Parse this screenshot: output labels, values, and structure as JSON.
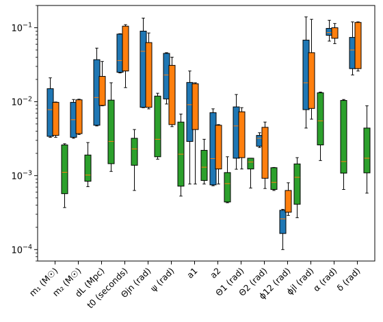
{
  "chart_data": {
    "type": "box",
    "yscale": "log",
    "ylim": [
      7e-05,
      0.2
    ],
    "yticks": [
      {
        "value": 0.0001,
        "base": "10",
        "exp": "−4"
      },
      {
        "value": 0.001,
        "base": "10",
        "exp": "−3"
      },
      {
        "value": 0.01,
        "base": "10",
        "exp": "−2"
      },
      {
        "value": 0.1,
        "base": "10",
        "exp": "−1"
      }
    ],
    "colors": [
      "#1f77b4",
      "#ff7f0e",
      "#2ca02c"
    ],
    "median_color": "#ff7f0e",
    "categories": [
      {
        "label": "m₁ (M☉)",
        "boxes": [
          {
            "whislo": 0.0033,
            "q1": 0.0034,
            "med": 0.0078,
            "q3": 0.015,
            "whishi": 0.021
          },
          {
            "whislo": 0.0033,
            "q1": 0.0035,
            "med": 0.0079,
            "q3": 0.0098,
            "whishi": 0.0099
          },
          {
            "whislo": 0.00037,
            "q1": 0.00057,
            "med": 0.00111,
            "q3": 0.0026,
            "whishi": 0.0027
          }
        ]
      },
      {
        "label": "m₂ (M☉)",
        "boxes": [
          {
            "whislo": 0.0032,
            "q1": 0.0033,
            "med": 0.0057,
            "q3": 0.0098,
            "whishi": 0.0107
          },
          {
            "whislo": 0.0036,
            "q1": 0.0037,
            "med": 0.0067,
            "q3": 0.0106,
            "whishi": 0.0108
          },
          {
            "whislo": 0.00071,
            "q1": 0.00084,
            "med": 0.00102,
            "q3": 0.0019,
            "whishi": 0.0028
          }
        ]
      },
      {
        "label": "dL (Mpc)",
        "boxes": [
          {
            "whislo": 0.0047,
            "q1": 0.0048,
            "med": 0.0114,
            "q3": 0.037,
            "whishi": 0.053
          },
          {
            "whislo": 0.0088,
            "q1": 0.0089,
            "med": 0.0165,
            "q3": 0.022,
            "whishi": 0.035
          },
          {
            "whislo": 0.00114,
            "q1": 0.00145,
            "med": 0.0029,
            "q3": 0.0105,
            "whishi": 0.018
          }
        ]
      },
      {
        "label": "t0 (seconds)",
        "boxes": [
          {
            "whislo": 0.0245,
            "q1": 0.025,
            "med": 0.036,
            "q3": 0.082,
            "whishi": 0.083
          },
          {
            "whislo": 0.0155,
            "q1": 0.026,
            "med": 0.068,
            "q3": 0.105,
            "whishi": 0.11
          },
          {
            "whislo": 0.00063,
            "q1": 0.00138,
            "med": 0.0023,
            "q3": 0.0032,
            "whishi": 0.0042
          }
        ]
      },
      {
        "label": "Θjn (rad)",
        "boxes": [
          {
            "whislo": 0.0083,
            "q1": 0.0084,
            "med": 0.048,
            "q3": 0.09,
            "whishi": 0.135
          },
          {
            "whislo": 0.008,
            "q1": 0.0084,
            "med": 0.031,
            "q3": 0.063,
            "whishi": 0.085
          },
          {
            "whislo": 0.00167,
            "q1": 0.0018,
            "med": 0.0031,
            "q3": 0.0119,
            "whishi": 0.013
          }
        ]
      },
      {
        "label": "ψ (rad)",
        "boxes": [
          {
            "whislo": 0.0093,
            "q1": 0.0109,
            "med": 0.023,
            "q3": 0.045,
            "whishi": 0.046
          },
          {
            "whislo": 0.0046,
            "q1": 0.0049,
            "med": 0.0133,
            "q3": 0.031,
            "whishi": 0.04
          },
          {
            "whislo": 0.00053,
            "q1": 0.00072,
            "med": 0.00195,
            "q3": 0.0053,
            "whishi": 0.0068
          }
        ]
      },
      {
        "label": "a1",
        "boxes": [
          {
            "whislo": 0.00077,
            "q1": 0.0029,
            "med": 0.0091,
            "q3": 0.0182,
            "whishi": 0.026
          },
          {
            "whislo": 0.00077,
            "q1": 0.0042,
            "med": 0.0075,
            "q3": 0.0175,
            "whishi": 0.018
          },
          {
            "whislo": 0.00077,
            "q1": 0.00086,
            "med": 0.0013,
            "q3": 0.0022,
            "whishi": 0.0031
          }
        ]
      },
      {
        "label": "a2",
        "boxes": [
          {
            "whislo": 0.00073,
            "q1": 0.00075,
            "med": 0.0017,
            "q3": 0.0071,
            "whishi": 0.008
          },
          {
            "whislo": 0.00077,
            "q1": 0.00123,
            "med": 0.0018,
            "q3": 0.0048,
            "whishi": 0.0049
          },
          {
            "whislo": 0.00043,
            "q1": 0.00044,
            "med": 0.00078,
            "q3": 0.0011,
            "whishi": 0.0018
          }
        ]
      },
      {
        "label": "Θ1 (rad)",
        "boxes": [
          {
            "whislo": 0.00122,
            "q1": 0.00172,
            "med": 0.0047,
            "q3": 0.0085,
            "whishi": 0.0125
          },
          {
            "whislo": 0.00123,
            "q1": 0.00175,
            "med": 0.0033,
            "q3": 0.0073,
            "whishi": 0.0083
          },
          {
            "whislo": 0.00068,
            "q1": 0.00123,
            "med": 0.00153,
            "q3": 0.00172,
            "whishi": 0.00172
          }
        ]
      },
      {
        "label": "Θ2 (rad)",
        "boxes": [
          {
            "whislo": 0.0024,
            "q1": 0.0025,
            "med": 0.0032,
            "q3": 0.0035,
            "whishi": 0.0038
          },
          {
            "whislo": 0.00067,
            "q1": 0.00092,
            "med": 0.0024,
            "q3": 0.0045,
            "whishi": 0.0053
          },
          {
            "whislo": 0.00063,
            "q1": 0.00065,
            "med": 0.00081,
            "q3": 0.00128,
            "whishi": 0.00129
          }
        ]
      },
      {
        "label": "ϕ12 (rad)",
        "boxes": [
          {
            "whislo": 0.0001,
            "q1": 0.000165,
            "med": 0.00026,
            "q3": 0.00034,
            "whishi": 0.00035
          },
          {
            "whislo": 0.00029,
            "q1": 0.00032,
            "med": 0.00049,
            "q3": 0.00063,
            "whishi": 0.0008
          },
          {
            "whislo": 0.00027,
            "q1": 0.00041,
            "med": 0.00095,
            "q3": 0.00144,
            "whishi": 0.00175
          }
        ]
      },
      {
        "label": "ϕjl (rad)",
        "boxes": [
          {
            "whislo": 0.0044,
            "q1": 0.0078,
            "med": 0.018,
            "q3": 0.068,
            "whishi": 0.14
          },
          {
            "whislo": 0.0058,
            "q1": 0.0081,
            "med": 0.0173,
            "q3": 0.046,
            "whishi": 0.13
          },
          {
            "whislo": 0.0016,
            "q1": 0.0026,
            "med": 0.0055,
            "q3": 0.0132,
            "whishi": 0.0135
          }
        ]
      },
      {
        "label": "α (rad)",
        "boxes": [
          {
            "whislo": 0.066,
            "q1": 0.079,
            "med": 0.086,
            "q3": 0.098,
            "whishi": 0.126
          },
          {
            "whislo": 0.061,
            "q1": 0.072,
            "med": 0.086,
            "q3": 0.1,
            "whishi": 0.114
          },
          {
            "whislo": 0.00065,
            "q1": 0.00108,
            "med": 0.00155,
            "q3": 0.0104,
            "whishi": 0.0107
          }
        ]
      },
      {
        "label": "δ (rad)",
        "boxes": [
          {
            "whislo": 0.023,
            "q1": 0.028,
            "med": 0.05,
            "q3": 0.074,
            "whishi": 0.12
          },
          {
            "whislo": 0.026,
            "q1": 0.028,
            "med": 0.053,
            "q3": 0.118,
            "whishi": 0.12
          },
          {
            "whislo": 0.00058,
            "q1": 0.00109,
            "med": 0.00172,
            "q3": 0.0044,
            "whishi": 0.0088
          }
        ]
      }
    ]
  }
}
